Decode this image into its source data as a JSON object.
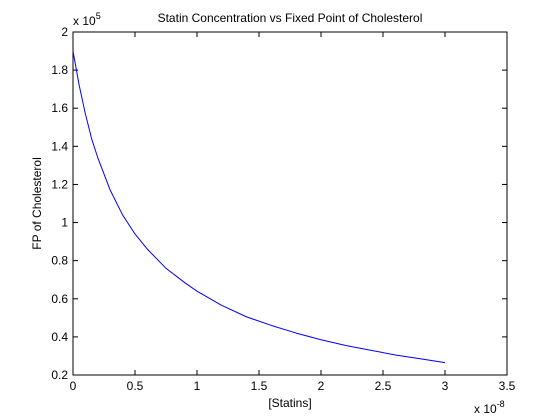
{
  "chart_data": {
    "type": "line",
    "title": "Statin Concentration vs Fixed Point of Cholesterol",
    "xlabel": "[Statins]",
    "ylabel": "FP of Cholesterol",
    "x_multiplier": {
      "base": "x 10",
      "exponent": "-8"
    },
    "y_multiplier": {
      "base": "x 10",
      "exponent": "5"
    },
    "xlim": [
      0,
      3.5
    ],
    "ylim": [
      0.2,
      2
    ],
    "x_ticks": [
      "0",
      "0.5",
      "1",
      "1.5",
      "2",
      "2.5",
      "3",
      "3.5"
    ],
    "y_ticks": [
      "0.2",
      "0.4",
      "0.6",
      "0.8",
      "1",
      "1.2",
      "1.4",
      "1.6",
      "1.8",
      "2"
    ],
    "grid": false,
    "legend": "none",
    "series": [
      {
        "color": "#0000ff",
        "x": [
          0,
          0.05,
          0.1,
          0.15,
          0.2,
          0.3,
          0.4,
          0.5,
          0.6,
          0.75,
          0.9,
          1.0,
          1.2,
          1.4,
          1.6,
          1.8,
          2.0,
          2.2,
          2.4,
          2.6,
          2.8,
          3.0
        ],
        "y": [
          1.9,
          1.72,
          1.57,
          1.44,
          1.34,
          1.17,
          1.04,
          0.94,
          0.86,
          0.76,
          0.685,
          0.64,
          0.565,
          0.505,
          0.46,
          0.42,
          0.385,
          0.355,
          0.33,
          0.305,
          0.285,
          0.265
        ]
      }
    ]
  }
}
